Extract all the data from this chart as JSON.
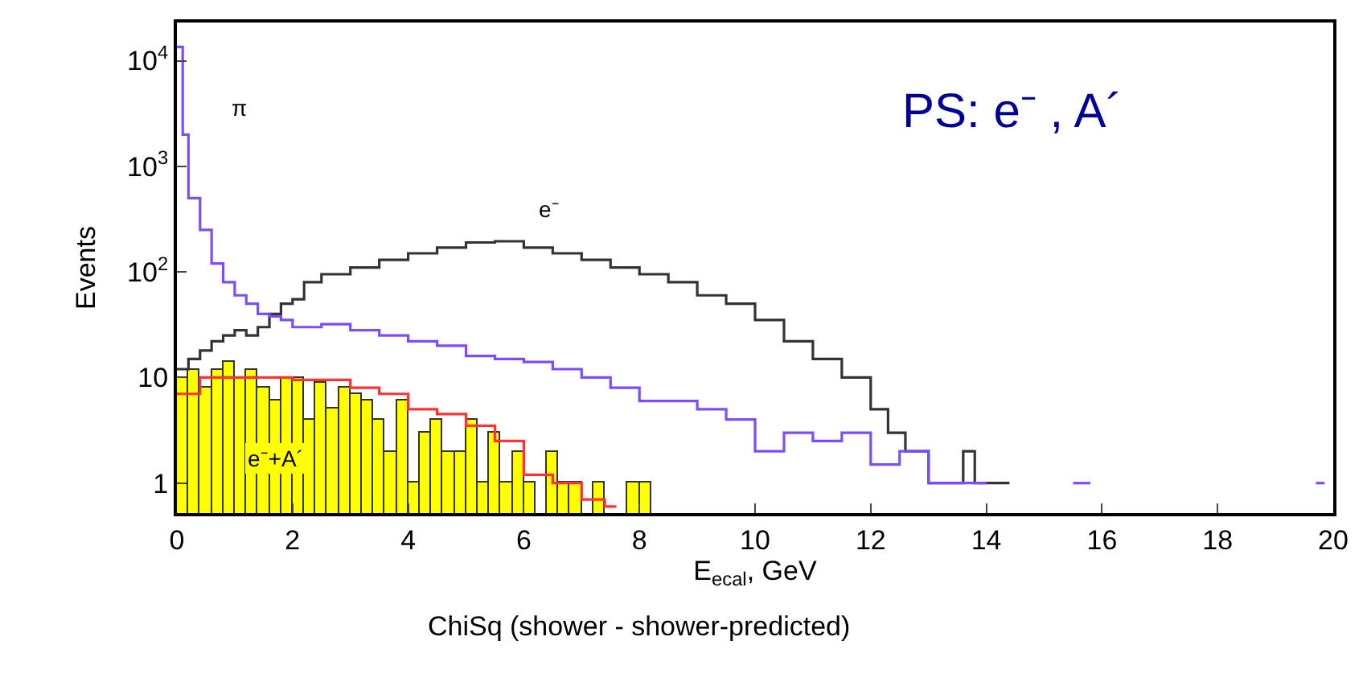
{
  "chart_data": {
    "type": "step",
    "xlabel": "E$_{ecal}$, GeV",
    "ylabel": "Events",
    "xlim": [
      0,
      20
    ],
    "xticks": [
      0,
      2,
      4,
      6,
      8,
      10,
      12,
      14,
      16,
      18,
      20
    ],
    "ylim": [
      0.52,
      23000
    ],
    "yticks": [
      1,
      10,
      {
        "value": 100,
        "label": "10$^{2}$"
      },
      {
        "value": 1000,
        "label": "10$^{3}$"
      },
      {
        "value": 10000,
        "label": "10$^{4}$"
      }
    ],
    "log": "y",
    "series": [
      {
        "type": "histogram",
        "color": "#ffff00",
        "bins": [
          0,
          0.2,
          0.4,
          0.6,
          0.8,
          1.0,
          1.2,
          1.4,
          1.6,
          1.8,
          2.0,
          2.2,
          2.4,
          2.6,
          2.8,
          3.0,
          3.2,
          3.4,
          3.6,
          3.8,
          4.0,
          4.2,
          4.4,
          4.6,
          4.8,
          5.0,
          5.2,
          5.4,
          5.6,
          5.8,
          6.0,
          6.2,
          6.4,
          6.6,
          6.8,
          7.0,
          7.2,
          7.4,
          7.6,
          7.8,
          8.0,
          8.2
        ],
        "values": [
          10,
          12,
          8,
          12,
          14,
          10,
          12,
          8,
          6,
          10,
          10,
          4,
          9,
          5,
          8,
          7,
          6,
          4,
          2,
          6,
          1,
          3,
          4,
          2,
          2,
          4,
          1,
          3,
          1,
          2,
          1,
          null,
          2,
          1,
          1,
          null,
          1,
          null,
          null,
          1,
          1
        ]
      },
      {
        "color": "#ff3333",
        "x": [
          0,
          0.4,
          1,
          2,
          3,
          3.5,
          4,
          4.5,
          5,
          5.5,
          6,
          6.5,
          7,
          7.4,
          7.6
        ],
        "values": [
          7,
          10,
          10,
          9.5,
          8,
          7,
          5,
          4.5,
          3.5,
          2.5,
          1.2,
          1,
          0.7,
          0.6,
          0.6
        ]
      },
      {
        "color": "#333333",
        "x": [
          0,
          0.2,
          0.4,
          0.6,
          0.8,
          1.0,
          1.2,
          1.4,
          1.6,
          1.8,
          2.0,
          2.2,
          2.5,
          3,
          3.5,
          4,
          4.5,
          5,
          5.5,
          6,
          6.5,
          7,
          7.5,
          8,
          8.5,
          9,
          9.5,
          10,
          10.5,
          11,
          11.5,
          12,
          12.3,
          12.6,
          13,
          13.6,
          13.8,
          14.2,
          14.4
        ],
        "values": [
          12,
          15,
          18,
          22,
          25,
          28,
          25,
          30,
          40,
          50,
          55,
          80,
          95,
          110,
          130,
          150,
          170,
          190,
          195,
          170,
          150,
          130,
          110,
          95,
          80,
          60,
          50,
          35,
          22,
          15,
          10,
          5,
          3,
          2,
          1,
          2,
          1,
          1,
          1
        ]
      },
      {
        "color": "#7b4dff",
        "x": [
          0,
          0.1,
          0.2,
          0.4,
          0.6,
          0.8,
          1.0,
          1.2,
          1.4,
          1.6,
          1.8,
          2,
          2.5,
          3,
          3.5,
          4,
          4.5,
          5,
          5.5,
          6,
          6.5,
          7,
          7.5,
          8,
          8.5,
          9,
          9.5,
          10,
          10.5,
          11,
          11.5,
          12,
          12.5,
          13,
          13.5,
          14,
          14.4,
          15.5,
          15.8,
          16,
          19.7,
          19.85
        ],
        "values": [
          13500,
          2000,
          500,
          250,
          120,
          80,
          60,
          50,
          40,
          38,
          35,
          30,
          32,
          28,
          25,
          22,
          20,
          16,
          15,
          14,
          12,
          10,
          8,
          6,
          6,
          5,
          4,
          2,
          3,
          2.5,
          3,
          1.5,
          2,
          1,
          1,
          1,
          null,
          1,
          1,
          null,
          1,
          1
        ]
      }
    ],
    "annotations": [
      "π",
      "e⁻",
      {
        "text": "e⁻+A´",
        "x": 1.7,
        "y": 1.7
      },
      "PS: e⁻ , A´",
      "ChiSq (shower - shower-predicted)"
    ]
  }
}
